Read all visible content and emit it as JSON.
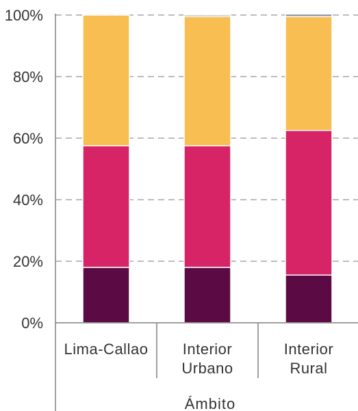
{
  "chart_data": {
    "type": "bar",
    "stacked": true,
    "categories": [
      [
        "Lima-Callao"
      ],
      [
        "Interior",
        "Urbano"
      ],
      [
        "Interior",
        "Rural"
      ]
    ],
    "series": [
      {
        "color": "#5c0a43",
        "values": [
          18.0,
          18.0,
          15.5
        ]
      },
      {
        "color": "#d62466",
        "values": [
          39.5,
          39.5,
          47.0
        ]
      },
      {
        "color": "#f8be52",
        "values": [
          42.5,
          42.0,
          37.0
        ]
      },
      {
        "color": "#7f8c9c",
        "values": [
          0.0,
          0.5,
          0.8
        ]
      }
    ],
    "yticks": [
      "0%",
      "20%",
      "40%",
      "60%",
      "80%",
      "100%"
    ],
    "ylim": [
      0,
      100
    ],
    "xlabel": "Ámbito",
    "ylabel": "",
    "grid": "dashed-horizontal"
  }
}
